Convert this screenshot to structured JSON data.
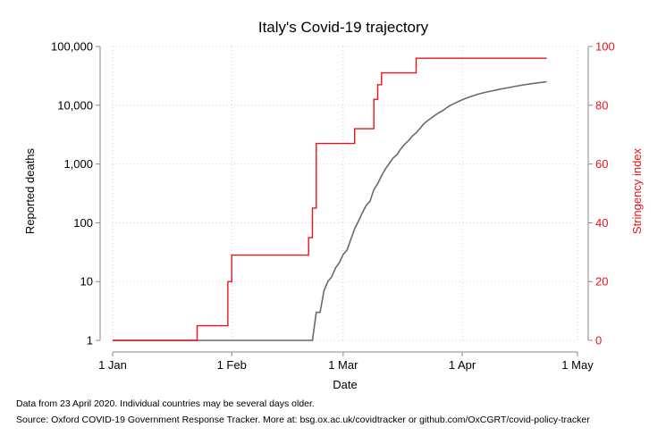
{
  "chart_data": {
    "type": "line",
    "title": "Italy's Covid-19 trajectory",
    "xlabel": "Date",
    "ylabel_left": "Reported deaths",
    "ylabel_right": "Stringency index",
    "x_ticks": [
      "1 Jan",
      "1 Feb",
      "1 Mar",
      "1 Apr",
      "1 May"
    ],
    "x_tick_days": [
      0,
      31,
      60,
      91,
      121
    ],
    "y_left_ticks": [
      "1",
      "10",
      "100",
      "1,000",
      "10,000",
      "100,000"
    ],
    "y_left_tick_values": [
      1,
      10,
      100,
      1000,
      10000,
      100000
    ],
    "y_left_scale": "log",
    "y_left_range": [
      1,
      100000
    ],
    "y_right_ticks": [
      "0",
      "20",
      "40",
      "60",
      "80",
      "100"
    ],
    "y_right_tick_values": [
      0,
      20,
      40,
      60,
      80,
      100
    ],
    "y_right_range": [
      0,
      100
    ],
    "x_range": [
      "2020-01-01",
      "2020-05-01"
    ],
    "grid": true,
    "colors": {
      "deaths": "#6a6a6a",
      "stringency": "#e8141b",
      "grid": "#cfcfcf",
      "axis": "#000000"
    },
    "series": [
      {
        "key": "deaths",
        "axis": "left",
        "x_dates": [
          "2020-01-01",
          "2020-02-21",
          "2020-02-22",
          "2020-02-23",
          "2020-02-24",
          "2020-02-25",
          "2020-02-26",
          "2020-02-27",
          "2020-02-28",
          "2020-02-29",
          "2020-03-01",
          "2020-03-02",
          "2020-03-03",
          "2020-03-04",
          "2020-03-05",
          "2020-03-06",
          "2020-03-07",
          "2020-03-08",
          "2020-03-09",
          "2020-03-10",
          "2020-03-11",
          "2020-03-12",
          "2020-03-13",
          "2020-03-14",
          "2020-03-15",
          "2020-03-16",
          "2020-03-17",
          "2020-03-18",
          "2020-03-19",
          "2020-03-20",
          "2020-03-21",
          "2020-03-22",
          "2020-03-23",
          "2020-03-24",
          "2020-03-25",
          "2020-03-26",
          "2020-03-27",
          "2020-03-28",
          "2020-03-29",
          "2020-03-30",
          "2020-03-31",
          "2020-04-01",
          "2020-04-03",
          "2020-04-05",
          "2020-04-07",
          "2020-04-09",
          "2020-04-11",
          "2020-04-13",
          "2020-04-15",
          "2020-04-17",
          "2020-04-19",
          "2020-04-21",
          "2020-04-23"
        ],
        "values": [
          1,
          1,
          1,
          3,
          3,
          7,
          10,
          12,
          17,
          21,
          29,
          34,
          52,
          79,
          107,
          148,
          197,
          233,
          366,
          463,
          631,
          827,
          1016,
          1266,
          1441,
          1809,
          2158,
          2503,
          2978,
          3405,
          4032,
          4825,
          5476,
          6077,
          6820,
          7503,
          8165,
          9134,
          10023,
          10779,
          11591,
          12428,
          13915,
          15362,
          16523,
          17669,
          18849,
          19899,
          21067,
          22170,
          23227,
          24114,
          25085
        ]
      },
      {
        "key": "stringency",
        "axis": "right",
        "x_dates": [
          "2020-01-01",
          "2020-01-22",
          "2020-01-23",
          "2020-01-30",
          "2020-01-31",
          "2020-02-01",
          "2020-02-20",
          "2020-02-21",
          "2020-02-22",
          "2020-02-23",
          "2020-03-03",
          "2020-03-04",
          "2020-03-08",
          "2020-03-09",
          "2020-03-10",
          "2020-03-11",
          "2020-03-19",
          "2020-03-20",
          "2020-04-23"
        ],
        "values": [
          0,
          0,
          5,
          5,
          20,
          29,
          29,
          35,
          45,
          67,
          67,
          72,
          72,
          82,
          87,
          91,
          91,
          96,
          96
        ]
      }
    ],
    "notes": [
      "Data from 23 April 2020. Individual countries may be several days older.",
      "Source: Oxford COVID-19 Government Response Tracker. More at: bsg.ox.ac.uk/covidtracker or github.com/OxCGRT/covid-policy-tracker"
    ]
  }
}
